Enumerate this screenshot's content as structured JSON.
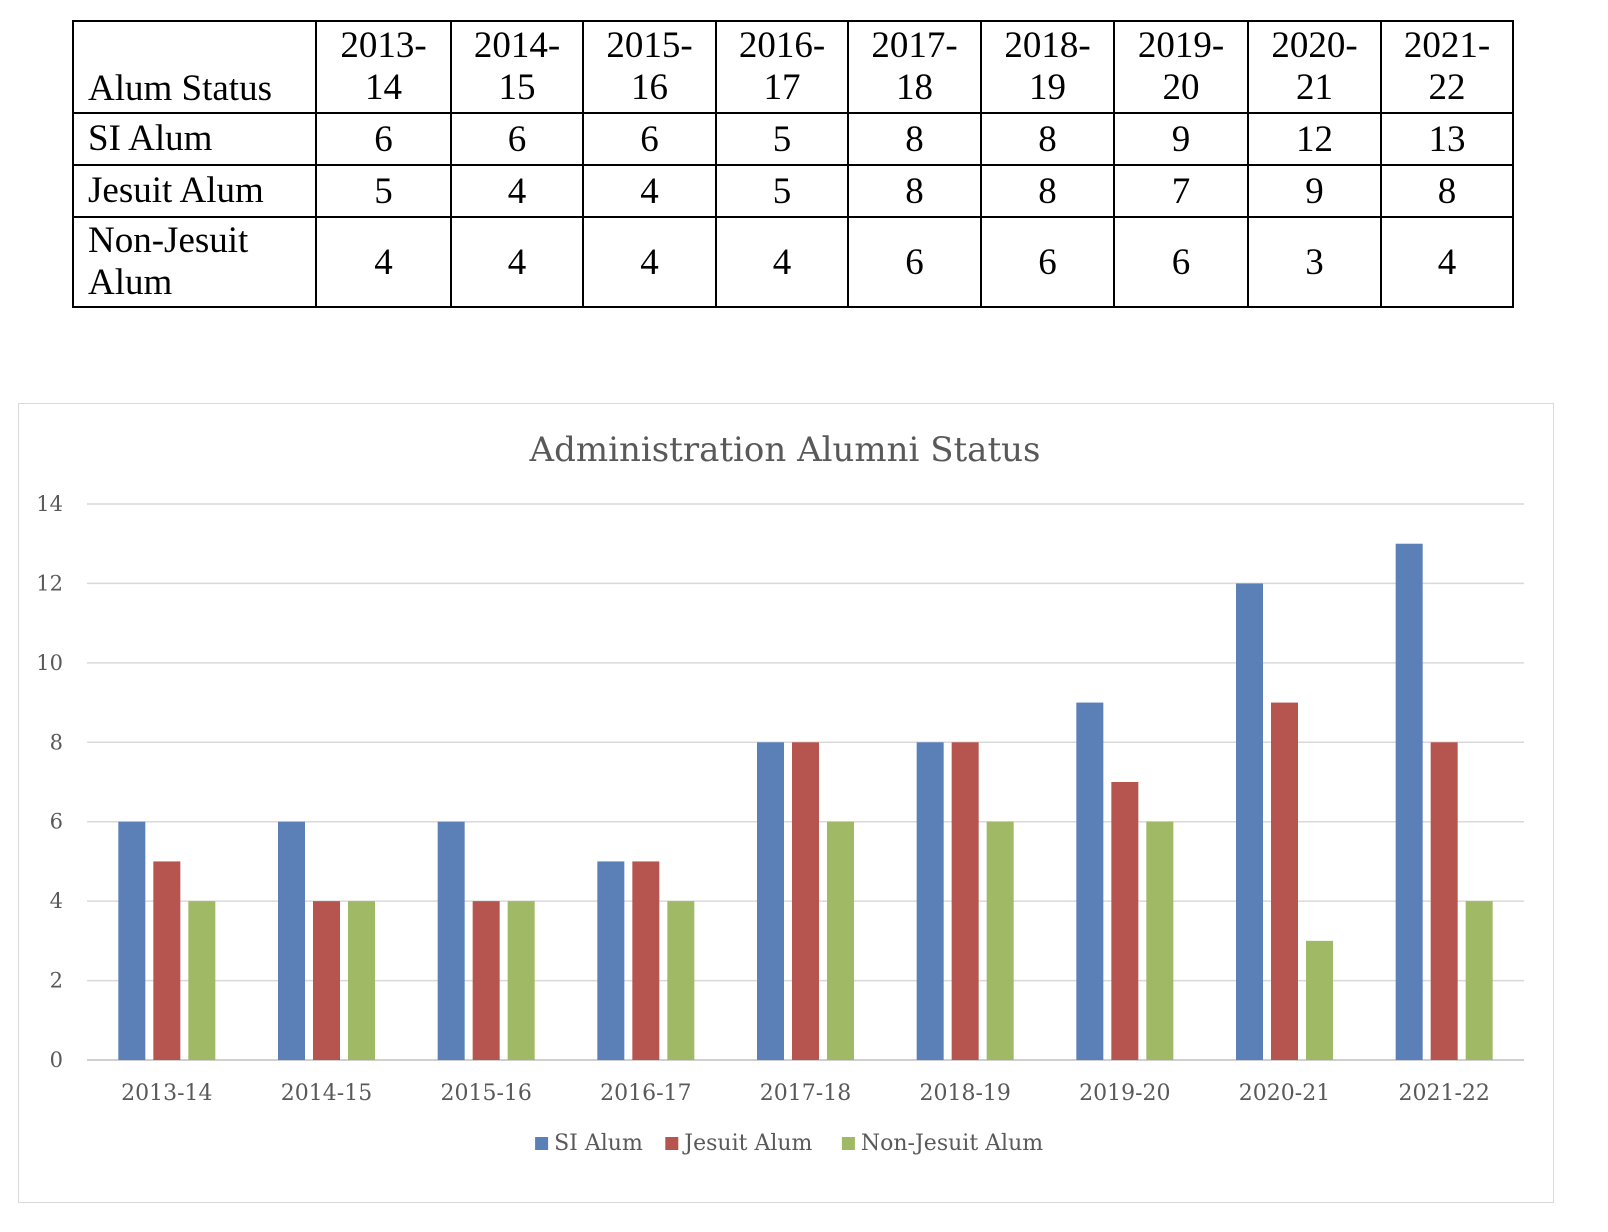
{
  "table": {
    "header_label": "Alum Status",
    "years": [
      "2013-\n14",
      "2014-\n15",
      "2015-\n16",
      "2016-\n17",
      "2017-\n18",
      "2018-\n19",
      "2019-\n20",
      "2020-\n21",
      "2021-\n22"
    ],
    "rows": [
      {
        "label": "SI Alum",
        "values": [
          "6",
          "6",
          "6",
          "5",
          "8",
          "8",
          "9",
          "12",
          "13"
        ]
      },
      {
        "label": "Jesuit Alum",
        "values": [
          "5",
          "4",
          "4",
          "5",
          "8",
          "8",
          "7",
          "9",
          "8"
        ]
      },
      {
        "label": "Non-Jesuit\nAlum",
        "values": [
          "4",
          "4",
          "4",
          "4",
          "6",
          "6",
          "6",
          "3",
          "4"
        ]
      }
    ]
  },
  "chart_data": {
    "type": "bar",
    "title": "Administration Alumni Status",
    "xlabel": "",
    "ylabel": "",
    "categories": [
      "2013-14",
      "2014-15",
      "2015-16",
      "2016-17",
      "2017-18",
      "2018-19",
      "2019-20",
      "2020-21",
      "2021-22"
    ],
    "series": [
      {
        "name": "SI Alum",
        "color": "#5b80b8",
        "values": [
          6,
          6,
          6,
          5,
          8,
          8,
          9,
          12,
          13
        ]
      },
      {
        "name": "Jesuit Alum",
        "color": "#b65450",
        "values": [
          5,
          4,
          4,
          5,
          8,
          8,
          7,
          9,
          8
        ]
      },
      {
        "name": "Non-Jesuit Alum",
        "color": "#a0b964",
        "values": [
          4,
          4,
          4,
          4,
          6,
          6,
          6,
          3,
          4
        ]
      }
    ],
    "ylim": [
      0,
      14
    ],
    "yticks": [
      0,
      2,
      4,
      6,
      8,
      10,
      12,
      14
    ],
    "grid": true,
    "legend": "bottom"
  }
}
